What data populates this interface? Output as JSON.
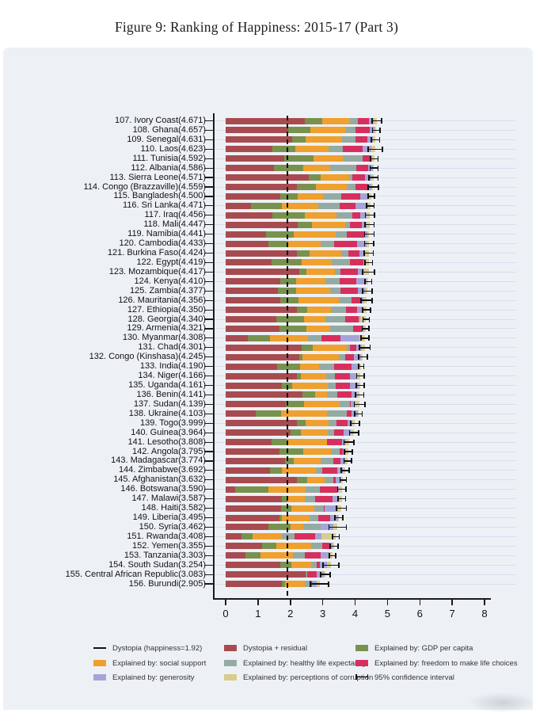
{
  "title": "Figure 9: Ranking of Happiness: 2015-17 (Part 3)",
  "colors": {
    "residual": "#a84b50",
    "gdp": "#78924e",
    "social_support": "#efa02f",
    "healthy_life_expectancy": "#94aba3",
    "freedom": "#d62f5e",
    "generosity": "#a5a4d9",
    "corruption": "#d9cc8f",
    "axis": "#1a1a1a",
    "panel_background": "#edf1f6",
    "dystopia_line": "#0d0d0d"
  },
  "legend": {
    "columns": [
      [
        {
          "symbol": "line",
          "color": "#111111",
          "label": "Dystopia (happiness=1.92)"
        },
        {
          "symbol": "swatch",
          "color": "#efa02f",
          "label": "Explained by: social support"
        },
        {
          "symbol": "swatch",
          "color": "#a5a4d9",
          "label": "Explained by: generosity"
        }
      ],
      [
        {
          "symbol": "swatch",
          "color": "#a84b50",
          "label": "Dystopia + residual"
        },
        {
          "symbol": "swatch",
          "color": "#94aba3",
          "label": "Explained by: healthy life expectancy"
        },
        {
          "symbol": "swatch",
          "color": "#d9cc8f",
          "label": "Explained by: perceptions of corruption"
        }
      ],
      [
        {
          "symbol": "swatch",
          "color": "#78924e",
          "label": "Explained by: GDP per capita"
        },
        {
          "symbol": "swatch",
          "color": "#d62f5e",
          "label": "Explained by: freedom to make life choices"
        },
        {
          "symbol": "ci",
          "color": "#111111",
          "label": "95% confidence interval"
        }
      ]
    ]
  },
  "chart_data": {
    "type": "bar",
    "orientation": "horizontal-stacked",
    "title": "Figure 9: Ranking of Happiness: 2015-17 (Part 3)",
    "xlabel": "",
    "ylabel": "",
    "xlim": [
      0,
      8
    ],
    "x_ticks": [
      0,
      1,
      2,
      3,
      4,
      5,
      6,
      7,
      8
    ],
    "dystopia_reference": 1.92,
    "grid": true,
    "legend_position": "bottom",
    "segment_order": [
      "residual",
      "gdp",
      "social_support",
      "healthy_life_expectancy",
      "freedom",
      "generosity",
      "corruption"
    ],
    "segment_labels": [
      "Dystopia + residual",
      "Explained by: GDP per capita",
      "Explained by: social support",
      "Explained by: healthy life expectancy",
      "Explained by: freedom to make life choices",
      "Explained by: generosity",
      "Explained by: perceptions of corruption"
    ],
    "countries": [
      {
        "rank": 107,
        "name": "Ivory Coast",
        "score": "4.671",
        "segments": [
          2.441,
          0.54,
          0.87,
          0.23,
          0.35,
          0.15,
          0.09
        ],
        "ci": 0.15
      },
      {
        "rank": 108,
        "name": "Ghana",
        "score": "4.657",
        "segments": [
          1.937,
          0.67,
          1.1,
          0.3,
          0.44,
          0.15,
          0.06
        ],
        "ci": 0.12
      },
      {
        "rank": 109,
        "name": "Senegal",
        "score": "4.631",
        "segments": [
          2.051,
          0.43,
          1.12,
          0.41,
          0.38,
          0.15,
          0.09
        ],
        "ci": 0.13
      },
      {
        "rank": 110,
        "name": "Laos",
        "score": "4.623",
        "segments": [
          1.433,
          0.72,
          1.04,
          0.42,
          0.63,
          0.27,
          0.11
        ],
        "ci": 0.22
      },
      {
        "rank": 111,
        "name": "Tunisia",
        "score": "4.592",
        "segments": [
          1.822,
          0.89,
          0.91,
          0.61,
          0.24,
          0.05,
          0.07
        ],
        "ci": 0.12
      },
      {
        "rank": 112,
        "name": "Albania",
        "score": "4.586",
        "segments": [
          1.486,
          0.92,
          0.82,
          0.81,
          0.36,
          0.16,
          0.03
        ],
        "ci": 0.12
      },
      {
        "rank": 113,
        "name": "Sierra Leone",
        "score": "4.571",
        "segments": [
          2.571,
          0.37,
          0.87,
          0.1,
          0.39,
          0.2,
          0.07
        ],
        "ci": 0.14
      },
      {
        "rank": 114,
        "name": "Congo (Brazzaville)",
        "score": "4.559",
        "segments": [
          2.209,
          0.58,
          0.96,
          0.26,
          0.38,
          0.11,
          0.06
        ],
        "ci": 0.16
      },
      {
        "rank": 115,
        "name": "Bangladesh",
        "score": "4.500",
        "segments": [
          1.69,
          0.53,
          0.78,
          0.57,
          0.58,
          0.23,
          0.12
        ],
        "ci": 0.1
      },
      {
        "rank": 116,
        "name": "Sri Lanka",
        "score": "4.471",
        "segments": [
          0.781,
          0.95,
          1.12,
          0.67,
          0.49,
          0.4,
          0.06
        ],
        "ci": 0.12
      },
      {
        "rank": 117,
        "name": "Iraq",
        "score": "4.456",
        "segments": [
          1.446,
          1.01,
          0.97,
          0.5,
          0.24,
          0.19,
          0.1
        ],
        "ci": 0.14
      },
      {
        "rank": 118,
        "name": "Mali",
        "score": "4.447",
        "segments": [
          2.227,
          0.45,
          1.01,
          0.16,
          0.36,
          0.15,
          0.09
        ],
        "ci": 0.14
      },
      {
        "rank": 119,
        "name": "Namibia",
        "score": "4.441",
        "segments": [
          1.241,
          0.87,
          1.28,
          0.36,
          0.52,
          0.1,
          0.07
        ],
        "ci": 0.15
      },
      {
        "rank": 120,
        "name": "Cambodia",
        "score": "4.433",
        "segments": [
          1.333,
          0.6,
          1.0,
          0.42,
          0.7,
          0.31,
          0.07
        ],
        "ci": 0.14
      },
      {
        "rank": 121,
        "name": "Burkina Faso",
        "score": "4.424",
        "segments": [
          2.214,
          0.37,
          0.99,
          0.22,
          0.33,
          0.18,
          0.12
        ],
        "ci": 0.14
      },
      {
        "rank": 122,
        "name": "Egypt",
        "score": "4.419",
        "segments": [
          1.429,
          0.92,
          0.94,
          0.56,
          0.4,
          0.07,
          0.1
        ],
        "ci": 0.12
      },
      {
        "rank": 123,
        "name": "Mozambique",
        "score": "4.417",
        "segments": [
          2.287,
          0.2,
          0.88,
          0.17,
          0.54,
          0.2,
          0.14
        ],
        "ci": 0.18
      },
      {
        "rank": 124,
        "name": "Kenya",
        "score": "4.410",
        "segments": [
          1.68,
          0.49,
          0.92,
          0.44,
          0.51,
          0.31,
          0.06
        ],
        "ci": 0.1
      },
      {
        "rank": 125,
        "name": "Zambia",
        "score": "4.377",
        "segments": [
          1.607,
          0.56,
          1.06,
          0.31,
          0.54,
          0.22,
          0.08
        ],
        "ci": 0.15
      },
      {
        "rank": 126,
        "name": "Mauritania",
        "score": "4.356",
        "segments": [
          1.686,
          0.57,
          1.25,
          0.39,
          0.26,
          0.11,
          0.09
        ],
        "ci": 0.17
      },
      {
        "rank": 127,
        "name": "Ethiopia",
        "score": "4.350",
        "segments": [
          2.2,
          0.31,
          0.75,
          0.46,
          0.33,
          0.2,
          0.1
        ],
        "ci": 0.12
      },
      {
        "rank": 128,
        "name": "Georgia",
        "score": "4.340",
        "segments": [
          1.57,
          0.85,
          0.66,
          0.62,
          0.42,
          0.04,
          0.18
        ],
        "ci": 0.1
      },
      {
        "rank": 129,
        "name": "Armenia",
        "score": "4.321",
        "segments": [
          1.671,
          0.82,
          0.75,
          0.71,
          0.26,
          0.08,
          0.03
        ],
        "ci": 0.1
      },
      {
        "rank": 130,
        "name": "Myanmar",
        "score": "4.308",
        "segments": [
          0.688,
          0.68,
          1.17,
          0.43,
          0.58,
          0.59,
          0.17
        ],
        "ci": 0.12
      },
      {
        "rank": 131,
        "name": "Chad",
        "score": "4.301",
        "segments": [
          2.341,
          0.36,
          1.05,
          0.1,
          0.19,
          0.18,
          0.08
        ],
        "ci": 0.16
      },
      {
        "rank": 132,
        "name": "Congo (Kinshasa)",
        "score": "4.245",
        "segments": [
          2.285,
          0.09,
          1.13,
          0.19,
          0.27,
          0.22,
          0.06
        ],
        "ci": 0.14
      },
      {
        "rank": 133,
        "name": "India",
        "score": "4.190",
        "segments": [
          1.59,
          0.72,
          0.57,
          0.46,
          0.54,
          0.22,
          0.09
        ],
        "ci": 0.08
      },
      {
        "rank": 134,
        "name": "Niger",
        "score": "4.166",
        "segments": [
          2.196,
          0.14,
          0.77,
          0.26,
          0.47,
          0.19,
          0.14
        ],
        "ci": 0.12
      },
      {
        "rank": 135,
        "name": "Uganda",
        "score": "4.161",
        "segments": [
          1.741,
          0.32,
          1.09,
          0.24,
          0.46,
          0.25,
          0.06
        ],
        "ci": 0.12
      },
      {
        "rank": 136,
        "name": "Benin",
        "score": "4.141",
        "segments": [
          2.381,
          0.38,
          0.37,
          0.33,
          0.43,
          0.17,
          0.08
        ],
        "ci": 0.13
      },
      {
        "rank": 137,
        "name": "Sudan",
        "score": "4.139",
        "segments": [
          1.859,
          0.56,
          1.1,
          0.32,
          0.02,
          0.16,
          0.12
        ],
        "ci": 0.16
      },
      {
        "rank": 138,
        "name": "Ukraine",
        "score": "4.103",
        "segments": [
          0.933,
          0.79,
          1.41,
          0.61,
          0.16,
          0.19,
          0.01
        ],
        "ci": 0.12
      },
      {
        "rank": 139,
        "name": "Togo",
        "score": "3.999",
        "segments": [
          2.209,
          0.26,
          0.7,
          0.25,
          0.35,
          0.14,
          0.09
        ],
        "ci": 0.13
      },
      {
        "rank": 140,
        "name": "Guinea",
        "score": "3.964",
        "segments": [
          2.004,
          0.31,
          0.85,
          0.18,
          0.31,
          0.21,
          0.1
        ],
        "ci": 0.14
      },
      {
        "rank": 141,
        "name": "Lesotho",
        "score": "3.808",
        "segments": [
          1.408,
          0.47,
          1.25,
          0.01,
          0.45,
          0.12,
          0.1
        ],
        "ci": 0.15
      },
      {
        "rank": 142,
        "name": "Angola",
        "score": "3.795",
        "segments": [
          1.675,
          0.73,
          0.84,
          0.27,
          0.11,
          0.1,
          0.07
        ],
        "ci": 0.12
      },
      {
        "rank": 143,
        "name": "Madagascar",
        "score": "3.774",
        "segments": [
          1.834,
          0.26,
          0.85,
          0.38,
          0.23,
          0.15,
          0.07
        ],
        "ci": 0.12
      },
      {
        "rank": 144,
        "name": "Zimbabwe",
        "score": "3.692",
        "segments": [
          1.372,
          0.36,
          1.05,
          0.2,
          0.47,
          0.16,
          0.08
        ],
        "ci": 0.12
      },
      {
        "rank": 145,
        "name": "Afghanistan",
        "score": "3.632",
        "segments": [
          2.192,
          0.33,
          0.54,
          0.26,
          0.09,
          0.16,
          0.06
        ],
        "ci": 0.1
      },
      {
        "rank": 146,
        "name": "Botswana",
        "score": "3.590",
        "segments": [
          0.29,
          1.02,
          1.17,
          0.42,
          0.56,
          0.04,
          0.09
        ],
        "ci": 0.13
      },
      {
        "rank": 147,
        "name": "Malawi",
        "score": "3.587",
        "segments": [
          1.727,
          0.19,
          0.54,
          0.31,
          0.53,
          0.21,
          0.08
        ],
        "ci": 0.12
      },
      {
        "rank": 148,
        "name": "Haiti",
        "score": "3.582",
        "segments": [
          1.702,
          0.32,
          0.71,
          0.29,
          0.03,
          0.42,
          0.11
        ],
        "ci": 0.15
      },
      {
        "rank": 149,
        "name": "Liberia",
        "score": "3.495",
        "segments": [
          1.655,
          0.08,
          0.86,
          0.27,
          0.37,
          0.23,
          0.03
        ],
        "ci": 0.12
      },
      {
        "rank": 150,
        "name": "Syria",
        "score": "3.462",
        "segments": [
          1.322,
          0.69,
          0.38,
          0.54,
          0.01,
          0.38,
          0.14
        ],
        "ci": 0.27
      },
      {
        "rank": 151,
        "name": "Rwanda",
        "score": "3.408",
        "segments": [
          0.498,
          0.33,
          0.9,
          0.4,
          0.64,
          0.2,
          0.44
        ],
        "ci": 0.1
      },
      {
        "rank": 152,
        "name": "Yemen",
        "score": "3.355",
        "segments": [
          1.125,
          0.44,
          1.07,
          0.34,
          0.24,
          0.08,
          0.06
        ],
        "ci": 0.12
      },
      {
        "rank": 153,
        "name": "Tanzania",
        "score": "3.303",
        "segments": [
          0.623,
          0.46,
          0.99,
          0.38,
          0.48,
          0.27,
          0.1
        ],
        "ci": 0.1
      },
      {
        "rank": 154,
        "name": "South Sudan",
        "score": "3.254",
        "segments": [
          1.684,
          0.34,
          0.61,
          0.18,
          0.11,
          0.22,
          0.11
        ],
        "ci": 0.25
      },
      {
        "rank": 155,
        "name": "Central African Republic",
        "score": "3.083",
        "segments": [
          2.483,
          0.02,
          0.0,
          0.01,
          0.31,
          0.22,
          0.04
        ],
        "ci": 0.15
      },
      {
        "rank": 156,
        "name": "Burundi",
        "score": "2.905",
        "segments": [
          1.735,
          0.09,
          0.63,
          0.15,
          0.07,
          0.15,
          0.08
        ],
        "ci": 0.28
      }
    ]
  }
}
